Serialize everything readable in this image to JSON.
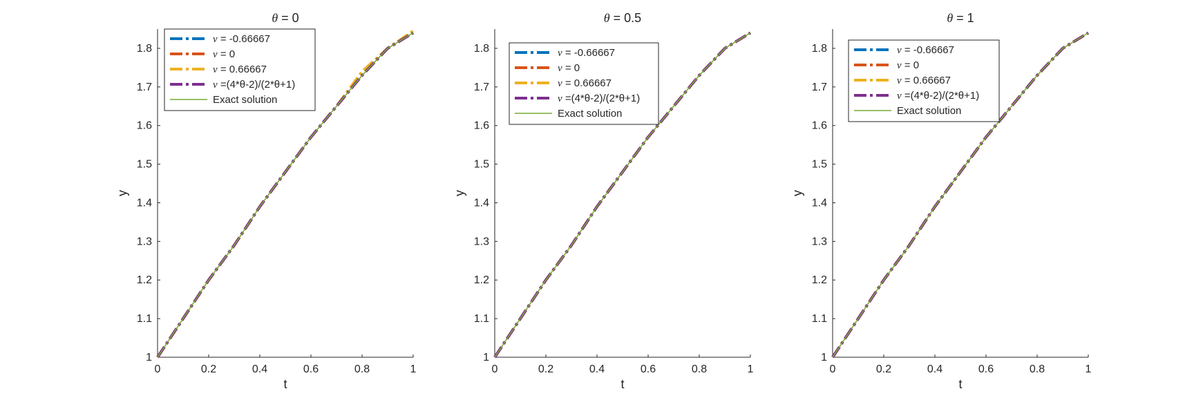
{
  "chart_data": [
    {
      "type": "line",
      "title": "θ = 0",
      "title_symbol": "θ",
      "title_rest": " = 0",
      "xlabel": "t",
      "ylabel": "y",
      "xlim": [
        0,
        1
      ],
      "ylim": [
        1,
        1.85
      ],
      "xticks": [
        0,
        0.2,
        0.4,
        0.6,
        0.8,
        1
      ],
      "xtick_labels": [
        "0",
        "0.2",
        "0.4",
        "0.6",
        "0.8",
        "1"
      ],
      "yticks": [
        1,
        1.1,
        1.2,
        1.3,
        1.4,
        1.5,
        1.6,
        1.7,
        1.8
      ],
      "ytick_labels": [
        "1",
        "1.1",
        "1.2",
        "1.3",
        "1.4",
        "1.5",
        "1.6",
        "1.7",
        "1.8"
      ],
      "grid": false,
      "legend_position": "top-left",
      "x": [
        0,
        0.1,
        0.2,
        0.3,
        0.4,
        0.5,
        0.6,
        0.7,
        0.8,
        0.9,
        1
      ],
      "series": [
        {
          "name": "ν = -0.66667",
          "symbol": "ν",
          "rest": " = -0.66667",
          "color": "#0072BD",
          "style": "dashdot",
          "values": [
            1,
            1.1,
            1.2,
            1.29,
            1.39,
            1.48,
            1.57,
            1.65,
            1.73,
            1.8,
            1.84
          ]
        },
        {
          "name": "ν = 0",
          "symbol": "ν",
          "rest": " = 0",
          "color": "#D95319",
          "style": "dashdot",
          "values": [
            1,
            1.1,
            1.2,
            1.29,
            1.39,
            1.48,
            1.57,
            1.65,
            1.73,
            1.8,
            1.84
          ]
        },
        {
          "name": "ν = 0.66667",
          "symbol": "ν",
          "rest": " = 0.66667",
          "color": "#EDB120",
          "style": "dashdot",
          "values": [
            1,
            1.1,
            1.2,
            1.29,
            1.39,
            1.48,
            1.57,
            1.65,
            1.74,
            1.8,
            1.845
          ]
        },
        {
          "name": "ν =(4*θ-2)/(2*θ+1)",
          "symbol": "ν",
          "rest": " =(4*θ-2)/(2*θ+1)",
          "color": "#7E2F8E",
          "style": "dashdot",
          "values": [
            1,
            1.1,
            1.2,
            1.29,
            1.39,
            1.48,
            1.57,
            1.65,
            1.73,
            1.8,
            1.84
          ]
        },
        {
          "name": "Exact solution",
          "symbol": "",
          "rest": "Exact solution",
          "color": "#77AC30",
          "style": "solid",
          "values": [
            1,
            1.1,
            1.2,
            1.29,
            1.39,
            1.48,
            1.57,
            1.65,
            1.73,
            1.8,
            1.84
          ]
        }
      ]
    },
    {
      "type": "line",
      "title": "θ = 0.5",
      "title_symbol": "θ",
      "title_rest": " = 0.5",
      "xlabel": "t",
      "ylabel": "y",
      "xlim": [
        0,
        1
      ],
      "ylim": [
        1,
        1.85
      ],
      "xticks": [
        0,
        0.2,
        0.4,
        0.6,
        0.8,
        1
      ],
      "xtick_labels": [
        "0",
        "0.2",
        "0.4",
        "0.6",
        "0.8",
        "1"
      ],
      "yticks": [
        1,
        1.1,
        1.2,
        1.3,
        1.4,
        1.5,
        1.6,
        1.7,
        1.8
      ],
      "ytick_labels": [
        "1",
        "1.1",
        "1.2",
        "1.3",
        "1.4",
        "1.5",
        "1.6",
        "1.7",
        "1.8"
      ],
      "grid": false,
      "legend_position": "top-left",
      "x": [
        0,
        0.1,
        0.2,
        0.3,
        0.4,
        0.5,
        0.6,
        0.7,
        0.8,
        0.9,
        1
      ],
      "series": [
        {
          "name": "ν = -0.66667",
          "symbol": "ν",
          "rest": " = -0.66667",
          "color": "#0072BD",
          "style": "dashdot",
          "values": [
            1,
            1.1,
            1.2,
            1.29,
            1.39,
            1.48,
            1.57,
            1.65,
            1.73,
            1.8,
            1.84
          ]
        },
        {
          "name": "ν = 0",
          "symbol": "ν",
          "rest": " = 0",
          "color": "#D95319",
          "style": "dashdot",
          "values": [
            1,
            1.1,
            1.2,
            1.29,
            1.39,
            1.48,
            1.57,
            1.65,
            1.73,
            1.8,
            1.84
          ]
        },
        {
          "name": "ν = 0.66667",
          "symbol": "ν",
          "rest": " = 0.66667",
          "color": "#EDB120",
          "style": "dashdot",
          "values": [
            1,
            1.1,
            1.2,
            1.29,
            1.39,
            1.48,
            1.57,
            1.65,
            1.73,
            1.8,
            1.84
          ]
        },
        {
          "name": "ν =(4*θ-2)/(2*θ+1)",
          "symbol": "ν",
          "rest": " =(4*θ-2)/(2*θ+1)",
          "color": "#7E2F8E",
          "style": "dashdot",
          "values": [
            1,
            1.1,
            1.2,
            1.29,
            1.39,
            1.48,
            1.57,
            1.65,
            1.73,
            1.8,
            1.84
          ]
        },
        {
          "name": "Exact solution",
          "symbol": "",
          "rest": "Exact solution",
          "color": "#77AC30",
          "style": "solid",
          "values": [
            1,
            1.1,
            1.2,
            1.29,
            1.39,
            1.48,
            1.57,
            1.65,
            1.73,
            1.8,
            1.84
          ]
        }
      ]
    },
    {
      "type": "line",
      "title": "θ = 1",
      "title_symbol": "θ",
      "title_rest": " = 1",
      "xlabel": "t",
      "ylabel": "y",
      "xlim": [
        0,
        1
      ],
      "ylim": [
        1,
        1.85
      ],
      "xticks": [
        0,
        0.2,
        0.4,
        0.6,
        0.8,
        1
      ],
      "xtick_labels": [
        "0",
        "0.2",
        "0.4",
        "0.6",
        "0.8",
        "1"
      ],
      "yticks": [
        1,
        1.1,
        1.2,
        1.3,
        1.4,
        1.5,
        1.6,
        1.7,
        1.8
      ],
      "ytick_labels": [
        "1",
        "1.1",
        "1.2",
        "1.3",
        "1.4",
        "1.5",
        "1.6",
        "1.7",
        "1.8"
      ],
      "grid": false,
      "legend_position": "top-left",
      "x": [
        0,
        0.1,
        0.2,
        0.3,
        0.4,
        0.5,
        0.6,
        0.7,
        0.8,
        0.9,
        1
      ],
      "series": [
        {
          "name": "ν = -0.66667",
          "symbol": "ν",
          "rest": " = -0.66667",
          "color": "#0072BD",
          "style": "dashdot",
          "values": [
            1,
            1.1,
            1.2,
            1.29,
            1.39,
            1.48,
            1.57,
            1.65,
            1.73,
            1.8,
            1.84
          ]
        },
        {
          "name": "ν = 0",
          "symbol": "ν",
          "rest": " = 0",
          "color": "#D95319",
          "style": "dashdot",
          "values": [
            1,
            1.1,
            1.2,
            1.29,
            1.39,
            1.48,
            1.57,
            1.65,
            1.73,
            1.8,
            1.84
          ]
        },
        {
          "name": "ν = 0.66667",
          "symbol": "ν",
          "rest": " = 0.66667",
          "color": "#EDB120",
          "style": "dashdot",
          "values": [
            1,
            1.1,
            1.2,
            1.29,
            1.39,
            1.48,
            1.57,
            1.65,
            1.73,
            1.8,
            1.84
          ]
        },
        {
          "name": "ν =(4*θ-2)/(2*θ+1)",
          "symbol": "ν",
          "rest": " =(4*θ-2)/(2*θ+1)",
          "color": "#7E2F8E",
          "style": "dashdot",
          "values": [
            1,
            1.1,
            1.2,
            1.29,
            1.39,
            1.48,
            1.57,
            1.65,
            1.73,
            1.8,
            1.84
          ]
        },
        {
          "name": "Exact solution",
          "symbol": "",
          "rest": "Exact solution",
          "color": "#77AC30",
          "style": "solid",
          "values": [
            1,
            1.1,
            1.2,
            1.29,
            1.39,
            1.48,
            1.57,
            1.65,
            1.73,
            1.8,
            1.84
          ]
        }
      ]
    }
  ]
}
